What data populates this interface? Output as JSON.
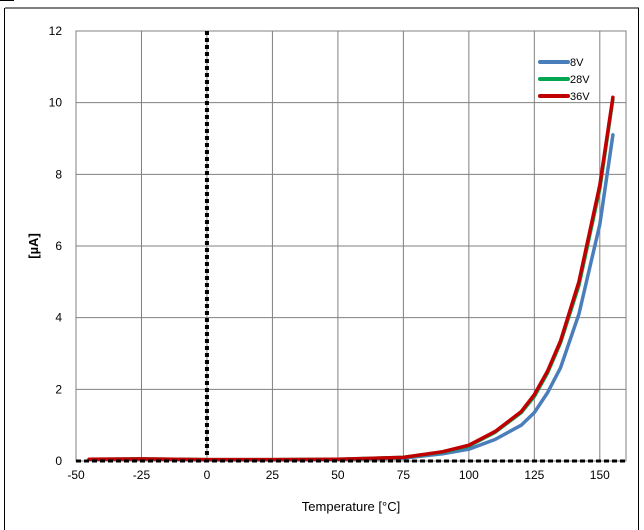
{
  "chart_data": {
    "type": "line",
    "title": "",
    "xlabel": "Temperature [°C]",
    "ylabel": "[µA]",
    "xlim": [
      -50,
      160
    ],
    "ylim": [
      0,
      12
    ],
    "x_ticks": [
      -50,
      -25,
      0,
      25,
      50,
      75,
      100,
      125,
      150
    ],
    "y_ticks": [
      0,
      2,
      4,
      6,
      8,
      10,
      12
    ],
    "grid": true,
    "legend_position": "top-right",
    "reference_line": {
      "x": 0,
      "style": "dashed",
      "color": "#000000"
    },
    "series": [
      {
        "name": "8V",
        "color": "#4a7ebb",
        "points": [
          [
            -45,
            0.04
          ],
          [
            -25,
            0.05
          ],
          [
            0,
            0.03
          ],
          [
            25,
            0.03
          ],
          [
            50,
            0.04
          ],
          [
            75,
            0.08
          ],
          [
            90,
            0.2
          ],
          [
            100,
            0.33
          ],
          [
            110,
            0.6
          ],
          [
            120,
            1.0
          ],
          [
            125,
            1.35
          ],
          [
            130,
            1.9
          ],
          [
            135,
            2.6
          ],
          [
            142,
            4.1
          ],
          [
            150,
            6.6
          ],
          [
            155,
            9.1
          ]
        ]
      },
      {
        "name": "28V",
        "color": "#00a651",
        "points": [
          [
            -45,
            0.05
          ],
          [
            -25,
            0.06
          ],
          [
            0,
            0.04
          ],
          [
            25,
            0.04
          ],
          [
            50,
            0.05
          ],
          [
            75,
            0.1
          ],
          [
            90,
            0.25
          ],
          [
            100,
            0.42
          ],
          [
            110,
            0.8
          ],
          [
            120,
            1.35
          ],
          [
            125,
            1.8
          ],
          [
            130,
            2.45
          ],
          [
            135,
            3.3
          ],
          [
            142,
            4.9
          ],
          [
            150,
            7.6
          ],
          [
            155,
            10.1
          ]
        ]
      },
      {
        "name": "36V",
        "color": "#c00000",
        "points": [
          [
            -45,
            0.05
          ],
          [
            -25,
            0.06
          ],
          [
            0,
            0.04
          ],
          [
            25,
            0.04
          ],
          [
            50,
            0.05
          ],
          [
            75,
            0.1
          ],
          [
            90,
            0.26
          ],
          [
            100,
            0.44
          ],
          [
            110,
            0.82
          ],
          [
            120,
            1.38
          ],
          [
            125,
            1.85
          ],
          [
            130,
            2.5
          ],
          [
            135,
            3.35
          ],
          [
            142,
            5.0
          ],
          [
            150,
            7.7
          ],
          [
            155,
            10.15
          ]
        ]
      }
    ]
  }
}
